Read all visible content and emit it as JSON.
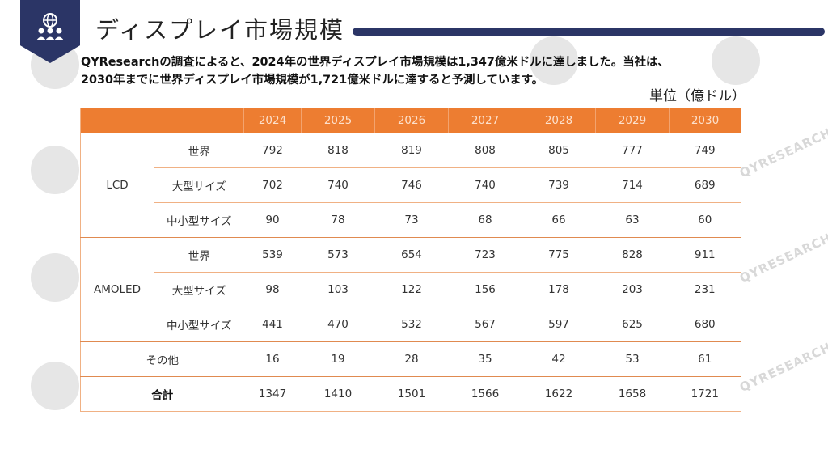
{
  "header": {
    "title": "ディスプレイ市場規模",
    "logo_icon": "people-globe-icon"
  },
  "description": {
    "line1": "QYResearchの調査によると、2024年の世界ディスプレイ市場規模は1,347億米ドルに達しました。当社は、",
    "line2": "2030年までに世界ディスプレイ市場規模が1,721億米ドルに達すると予測しています。"
  },
  "unit": "単位（億ドル）",
  "watermark": "QYRESEARCH",
  "colors": {
    "header_navy": "#2b3566",
    "table_orange": "#ed7d31"
  },
  "table": {
    "years": [
      "2024",
      "2025",
      "2026",
      "2027",
      "2028",
      "2029",
      "2030"
    ],
    "lcd": {
      "label": "LCD",
      "rows": [
        {
          "label": "世界",
          "values": [
            "792",
            "818",
            "819",
            "808",
            "805",
            "777",
            "749"
          ]
        },
        {
          "label": "大型サイズ",
          "values": [
            "702",
            "740",
            "746",
            "740",
            "739",
            "714",
            "689"
          ]
        },
        {
          "label": "中小型サイズ",
          "values": [
            "90",
            "78",
            "73",
            "68",
            "66",
            "63",
            "60"
          ]
        }
      ]
    },
    "amoled": {
      "label": "AMOLED",
      "rows": [
        {
          "label": "世界",
          "values": [
            "539",
            "573",
            "654",
            "723",
            "775",
            "828",
            "911"
          ]
        },
        {
          "label": "大型サイズ",
          "values": [
            "98",
            "103",
            "122",
            "156",
            "178",
            "203",
            "231"
          ]
        },
        {
          "label": "中小型サイズ",
          "values": [
            "441",
            "470",
            "532",
            "567",
            "597",
            "625",
            "680"
          ]
        }
      ]
    },
    "other": {
      "label": "その他",
      "values": [
        "16",
        "19",
        "28",
        "35",
        "42",
        "53",
        "61"
      ]
    },
    "total": {
      "label": "合計",
      "values": [
        "1347",
        "1410",
        "1501",
        "1566",
        "1622",
        "1658",
        "1721"
      ]
    }
  }
}
